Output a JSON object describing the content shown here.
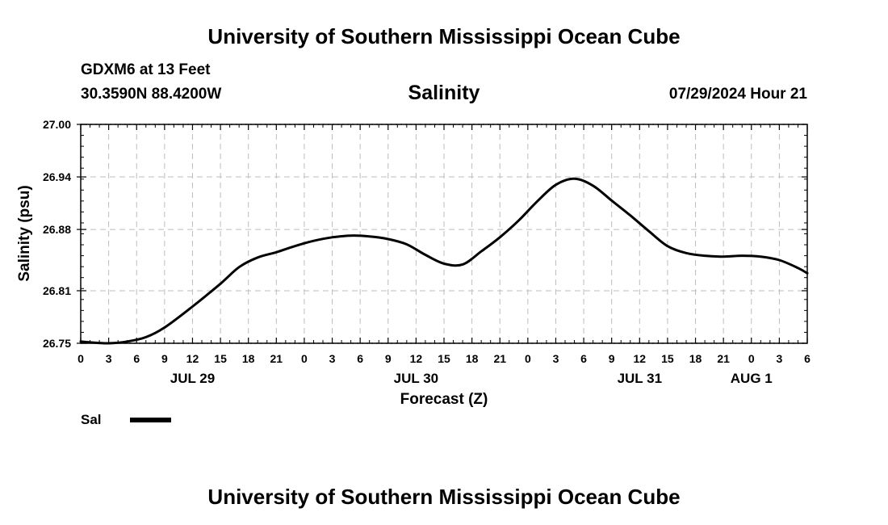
{
  "header": {
    "title": "University of Southern Mississippi Ocean Cube",
    "station": "GDXM6 at 13 Feet",
    "coords": "30.3590N  88.4200W",
    "subtitle": "Salinity",
    "runtime": "07/29/2024 Hour 21"
  },
  "footer": {
    "title": "University of Southern Mississippi Ocean Cube"
  },
  "legend": {
    "label": "Sal",
    "color": "#000000"
  },
  "chart_data": {
    "type": "line",
    "title": "Salinity",
    "xlabel": "Forecast (Z)",
    "ylabel": "Salinity (psu)",
    "ylim": [
      26.75,
      27.0
    ],
    "yticks": [
      "26.75",
      "26.81",
      "26.88",
      "26.94",
      "27.00"
    ],
    "xlim_hours": [
      0,
      78
    ],
    "xtick_labels": [
      "0",
      "3",
      "6",
      "9",
      "12",
      "15",
      "18",
      "21",
      "0",
      "3",
      "6",
      "9",
      "12",
      "15",
      "18",
      "21",
      "0",
      "3",
      "6",
      "9",
      "12",
      "15",
      "18",
      "21",
      "0",
      "3",
      "6"
    ],
    "date_labels": [
      {
        "label": "JUL 29",
        "hour": 12
      },
      {
        "label": "JUL 30",
        "hour": 36
      },
      {
        "label": "JUL 31",
        "hour": 60
      },
      {
        "label": "AUG 1",
        "hour": 72
      }
    ],
    "grid": true,
    "series": [
      {
        "name": "Sal",
        "color": "#000000",
        "x": [
          0,
          1,
          3,
          5,
          7,
          9,
          12,
          15,
          17,
          19,
          21,
          23,
          25,
          27,
          29,
          31,
          33,
          35,
          37,
          39,
          41,
          43,
          45,
          47,
          49,
          51,
          53,
          55,
          57,
          59,
          61,
          63,
          65,
          67,
          69,
          71,
          73,
          75,
          77,
          78
        ],
        "values": [
          26.752,
          26.751,
          26.75,
          26.752,
          26.757,
          26.768,
          26.792,
          26.818,
          26.837,
          26.848,
          26.854,
          26.861,
          26.867,
          26.871,
          26.873,
          26.872,
          26.869,
          26.863,
          26.851,
          26.841,
          26.84,
          26.855,
          26.871,
          26.89,
          26.912,
          26.931,
          26.938,
          26.93,
          26.913,
          26.896,
          26.878,
          26.861,
          26.853,
          26.85,
          26.849,
          26.85,
          26.849,
          26.845,
          26.836,
          26.83
        ]
      }
    ]
  }
}
